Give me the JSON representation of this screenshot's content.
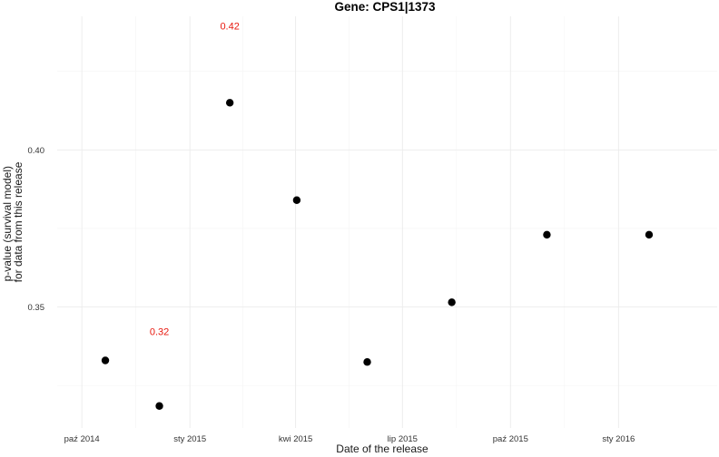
{
  "chart_data": {
    "type": "scatter",
    "title": "Gene: CPS1|1373",
    "xlabel": "Date of the release",
    "ylabel_lines": [
      "p-value (survival model)",
      "for data from this release"
    ],
    "x_axis_type": "date",
    "xlim": [
      "2014-09-10",
      "2016-03-25"
    ],
    "ylim": [
      0.3115,
      0.4425
    ],
    "x_ticks": [
      {
        "date": "2014-10-01",
        "label": "paź 2014"
      },
      {
        "date": "2015-01-01",
        "label": "sty 2015"
      },
      {
        "date": "2015-04-01",
        "label": "kwi 2015"
      },
      {
        "date": "2015-07-01",
        "label": "lip 2015"
      },
      {
        "date": "2015-10-01",
        "label": "paź 2015"
      },
      {
        "date": "2016-01-01",
        "label": "sty 2016"
      }
    ],
    "y_ticks": [
      {
        "value": 0.35,
        "label": "0.35"
      },
      {
        "value": 0.4,
        "label": "0.40"
      }
    ],
    "y_minor_ticks": [
      0.325,
      0.375,
      0.425
    ],
    "grid": true,
    "points": [
      {
        "x": "2014-10-21",
        "y": 0.333
      },
      {
        "x": "2014-12-06",
        "y": 0.3185
      },
      {
        "x": "2015-02-04",
        "y": 0.415
      },
      {
        "x": "2015-04-02",
        "y": 0.384
      },
      {
        "x": "2015-06-01",
        "y": 0.3325
      },
      {
        "x": "2015-08-12",
        "y": 0.3515
      },
      {
        "x": "2015-11-01",
        "y": 0.373
      },
      {
        "x": "2016-01-27",
        "y": 0.373
      }
    ],
    "annotations": [
      {
        "text": "0.42",
        "x": "2015-02-04",
        "y": 0.4395
      },
      {
        "text": "0.32",
        "x": "2014-12-06",
        "y": 0.3423
      }
    ],
    "colors": {
      "points": "#000000",
      "annotations": "#e8190f"
    }
  }
}
